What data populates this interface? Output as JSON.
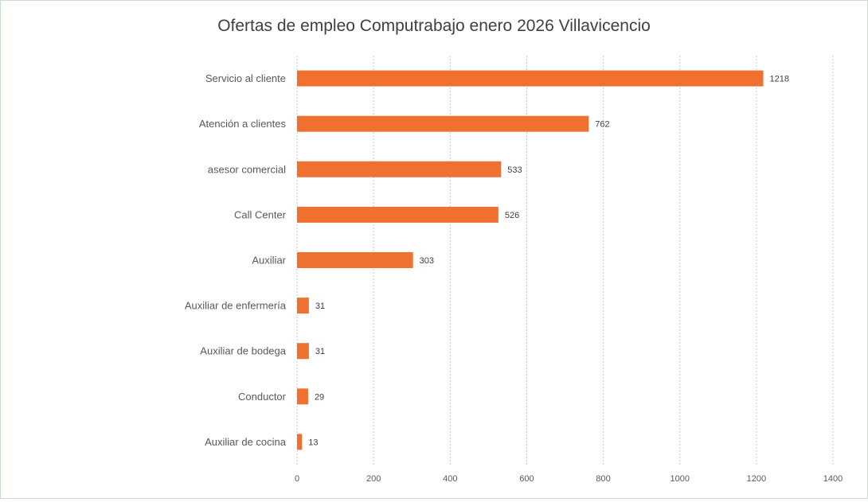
{
  "chart_data": {
    "type": "bar",
    "orientation": "horizontal",
    "title": "Ofertas de empleo Computrabajo enero 2026 Villavicencio",
    "categories": [
      "Servicio al cliente",
      "Atención a clientes",
      "asesor comercial",
      "Call Center",
      "Auxiliar",
      "Auxiliar de enfermería",
      "Auxiliar de bodega",
      "Conductor",
      "Auxiliar de cocina"
    ],
    "values": [
      1218,
      762,
      533,
      526,
      303,
      31,
      31,
      29,
      13
    ],
    "xlim": [
      0,
      1400
    ],
    "xticks": [
      0,
      200,
      400,
      600,
      800,
      1000,
      1200,
      1400
    ],
    "xlabel": "",
    "ylabel": "",
    "grid": "vertical dashed",
    "legend": "none",
    "data_labels": true,
    "bar_color": "#f07030"
  }
}
